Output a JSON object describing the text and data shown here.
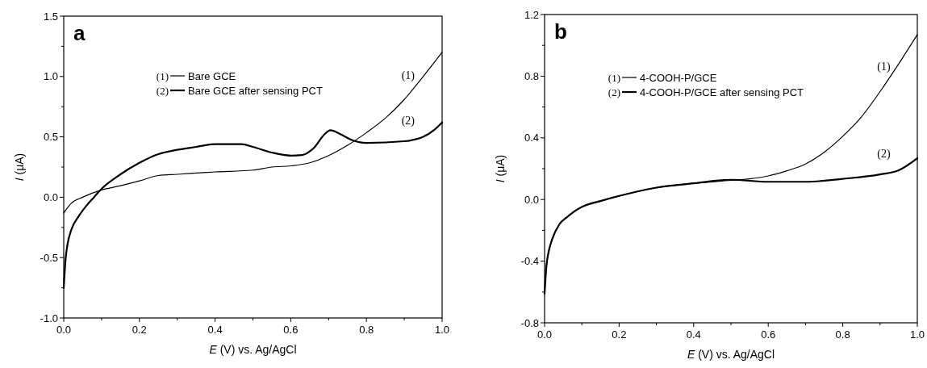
{
  "chart_data": [
    {
      "type": "line",
      "title": "a",
      "xlabel": "E (V) vs. Ag/AgCl",
      "ylabel": "I (μA)",
      "xlim": [
        0,
        1
      ],
      "ylim": [
        -1.0,
        1.5
      ],
      "xticks": [
        {
          "value": 0,
          "label": "0.0"
        },
        {
          "value": 0.1,
          "label": null
        },
        {
          "value": 0.2,
          "label": "0.2"
        },
        {
          "value": 0.3,
          "label": null
        },
        {
          "value": 0.4,
          "label": "0.4"
        },
        {
          "value": 0.5,
          "label": null
        },
        {
          "value": 0.6,
          "label": "0.6"
        },
        {
          "value": 0.7,
          "label": null
        },
        {
          "value": 0.8,
          "label": "0.8"
        },
        {
          "value": 0.9,
          "label": null
        },
        {
          "value": 1,
          "label": "1.0"
        }
      ],
      "yticks": [
        {
          "value": -1,
          "label": "-1.0"
        },
        {
          "value": -0.75,
          "label": null
        },
        {
          "value": -0.5,
          "label": "-0.5"
        },
        {
          "value": -0.25,
          "label": null
        },
        {
          "value": 0,
          "label": "0.0"
        },
        {
          "value": 0.25,
          "label": null
        },
        {
          "value": 0.5,
          "label": "0.5"
        },
        {
          "value": 0.75,
          "label": null
        },
        {
          "value": 1,
          "label": "1.0"
        },
        {
          "value": 1.25,
          "label": null
        },
        {
          "value": 1.5,
          "label": "1.5"
        }
      ],
      "grid": false,
      "legend": "top",
      "line_style": "solid",
      "marker": "none",
      "annotations": [
        "(1)",
        "(2)"
      ],
      "series": [
        {
          "name": "Bare GCE",
          "color": "#000000",
          "x": [
            0,
            0.02,
            0.05,
            0.1,
            0.15,
            0.2,
            0.25,
            0.3,
            0.4,
            0.5,
            0.55,
            0.6,
            0.65,
            0.7,
            0.75,
            0.8,
            0.85,
            0.9,
            0.95,
            1.0
          ],
          "values": [
            -0.13,
            -0.05,
            0.0,
            0.06,
            0.095,
            0.135,
            0.18,
            0.19,
            0.21,
            0.225,
            0.25,
            0.26,
            0.285,
            0.345,
            0.43,
            0.535,
            0.655,
            0.81,
            1.0,
            1.2
          ]
        },
        {
          "name": "Bare GCE after sensing PCT",
          "color": "#000000",
          "x": [
            0,
            0.005,
            0.01,
            0.02,
            0.04,
            0.06,
            0.08,
            0.1,
            0.15,
            0.2,
            0.25,
            0.3,
            0.35,
            0.4,
            0.47,
            0.5,
            0.55,
            0.6,
            0.63,
            0.66,
            0.69,
            0.705,
            0.73,
            0.76,
            0.8,
            0.9,
            0.95,
            0.98,
            1.0
          ],
          "values": [
            -0.75,
            -0.51,
            -0.39,
            -0.27,
            -0.155,
            -0.07,
            0.0,
            0.07,
            0.19,
            0.285,
            0.357,
            0.393,
            0.417,
            0.44,
            0.44,
            0.417,
            0.37,
            0.345,
            0.35,
            0.405,
            0.524,
            0.555,
            0.524,
            0.476,
            0.45,
            0.464,
            0.5,
            0.56,
            0.62
          ]
        }
      ]
    },
    {
      "type": "line",
      "title": "b",
      "xlabel": "E (V) vs. Ag/AgCl",
      "ylabel": "I (μA)",
      "xlim": [
        0,
        1
      ],
      "ylim": [
        -0.8,
        1.2
      ],
      "xticks": [
        {
          "value": 0,
          "label": "0.0"
        },
        {
          "value": 0.1,
          "label": null
        },
        {
          "value": 0.2,
          "label": "0.2"
        },
        {
          "value": 0.3,
          "label": null
        },
        {
          "value": 0.4,
          "label": "0.4"
        },
        {
          "value": 0.5,
          "label": null
        },
        {
          "value": 0.6,
          "label": "0.6"
        },
        {
          "value": 0.7,
          "label": null
        },
        {
          "value": 0.8,
          "label": "0.8"
        },
        {
          "value": 0.9,
          "label": null
        },
        {
          "value": 1,
          "label": "1.0"
        }
      ],
      "yticks": [
        {
          "value": -0.8,
          "label": "-0.8"
        },
        {
          "value": -0.6,
          "label": null
        },
        {
          "value": -0.4,
          "label": "-0.4"
        },
        {
          "value": -0.2,
          "label": null
        },
        {
          "value": 0,
          "label": "0.0"
        },
        {
          "value": 0.2,
          "label": null
        },
        {
          "value": 0.4,
          "label": "0.4"
        },
        {
          "value": 0.6,
          "label": null
        },
        {
          "value": 0.8,
          "label": "0.8"
        },
        {
          "value": 1.0,
          "label": null
        },
        {
          "value": 1.2,
          "label": "1.2"
        }
      ],
      "grid": false,
      "legend": "top",
      "line_style": "solid",
      "marker": "none",
      "annotations": [
        "(1)",
        "(2)"
      ],
      "series": [
        {
          "name": "4-COOH-P/GCE",
          "color": "#000000",
          "x": [
            0,
            0.005,
            0.01,
            0.02,
            0.04,
            0.06,
            0.08,
            0.1,
            0.15,
            0.2,
            0.3,
            0.4,
            0.5,
            0.55,
            0.6,
            0.65,
            0.7,
            0.75,
            0.8,
            0.85,
            0.9,
            0.95,
            1.0
          ],
          "values": [
            -0.61,
            -0.43,
            -0.35,
            -0.26,
            -0.16,
            -0.115,
            -0.077,
            -0.048,
            -0.01,
            0.023,
            0.077,
            0.105,
            0.124,
            0.134,
            0.153,
            0.186,
            0.23,
            0.306,
            0.41,
            0.536,
            0.7,
            0.88,
            1.07
          ]
        },
        {
          "name": "4-COOH-P/GCE after sensing PCT",
          "color": "#000000",
          "x": [
            0,
            0.005,
            0.01,
            0.02,
            0.04,
            0.06,
            0.08,
            0.1,
            0.15,
            0.2,
            0.3,
            0.4,
            0.45,
            0.5,
            0.6,
            0.7,
            0.8,
            0.9,
            0.95,
            1.0
          ],
          "values": [
            -0.61,
            -0.43,
            -0.35,
            -0.26,
            -0.16,
            -0.115,
            -0.077,
            -0.048,
            -0.01,
            0.023,
            0.077,
            0.105,
            0.12,
            0.128,
            0.115,
            0.115,
            0.134,
            0.163,
            0.19,
            0.268
          ]
        }
      ]
    }
  ]
}
